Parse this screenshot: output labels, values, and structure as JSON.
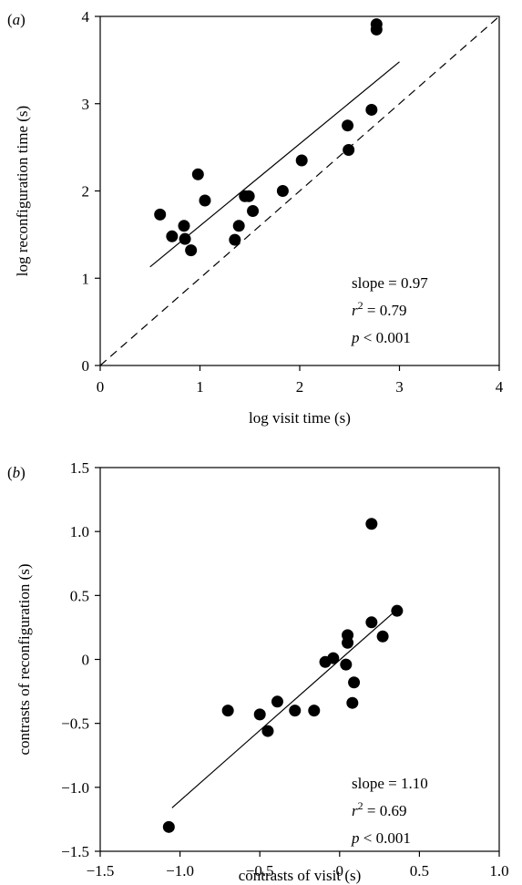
{
  "chart_data": [
    {
      "type": "scatter",
      "panel_label": "a",
      "xlabel": "log visit time (s)",
      "ylabel": "log reconfiguration time (s)",
      "xlim": [
        0,
        4
      ],
      "ylim": [
        0,
        4
      ],
      "xticks": [
        "0",
        "1",
        "2",
        "3",
        "4"
      ],
      "yticks": [
        "0",
        "1",
        "2",
        "3",
        "4"
      ],
      "points": [
        {
          "x": 0.6,
          "y": 1.73
        },
        {
          "x": 0.72,
          "y": 1.48
        },
        {
          "x": 0.84,
          "y": 1.6
        },
        {
          "x": 0.85,
          "y": 1.45
        },
        {
          "x": 0.91,
          "y": 1.32
        },
        {
          "x": 0.98,
          "y": 2.19
        },
        {
          "x": 1.05,
          "y": 1.89
        },
        {
          "x": 1.35,
          "y": 1.44
        },
        {
          "x": 1.39,
          "y": 1.6
        },
        {
          "x": 1.45,
          "y": 1.94
        },
        {
          "x": 1.49,
          "y": 1.94
        },
        {
          "x": 1.53,
          "y": 1.77
        },
        {
          "x": 1.83,
          "y": 2.0
        },
        {
          "x": 2.02,
          "y": 2.35
        },
        {
          "x": 2.48,
          "y": 2.75
        },
        {
          "x": 2.49,
          "y": 2.47
        },
        {
          "x": 2.72,
          "y": 2.93
        },
        {
          "x": 2.77,
          "y": 3.85
        },
        {
          "x": 2.77,
          "y": 3.91
        }
      ],
      "fit_line": {
        "x": [
          0.5,
          3.0
        ],
        "y": [
          1.13,
          3.48
        ]
      },
      "reference_line": {
        "x": [
          0,
          4
        ],
        "y": [
          0,
          4
        ]
      },
      "annotation": {
        "slope": "slope = 0.97",
        "r_label": "r",
        "r_exp": "2",
        "r_value": " = 0.79",
        "p_label": "p",
        "p_value": " <  0.001"
      }
    },
    {
      "type": "scatter",
      "panel_label": "b",
      "xlabel": "contrasts of visit (s)",
      "ylabel": "contrasts of reconfiguration (s)",
      "xlim": [
        -1.5,
        1.0
      ],
      "ylim": [
        -1.5,
        1.5
      ],
      "xticks": [
        "−1.5",
        "−1.0",
        "−0.5",
        "0",
        "0.5",
        "1.0"
      ],
      "yticks": [
        "−1.5",
        "−1.0",
        "−0.5",
        "0",
        "0.5",
        "1.0",
        "1.5"
      ],
      "points": [
        {
          "x": -1.07,
          "y": -1.31
        },
        {
          "x": -0.7,
          "y": -0.4
        },
        {
          "x": -0.5,
          "y": -0.43
        },
        {
          "x": -0.45,
          "y": -0.56
        },
        {
          "x": -0.39,
          "y": -0.33
        },
        {
          "x": -0.28,
          "y": -0.4
        },
        {
          "x": -0.16,
          "y": -0.4
        },
        {
          "x": -0.09,
          "y": -0.02
        },
        {
          "x": -0.04,
          "y": 0.01
        },
        {
          "x": 0.04,
          "y": -0.04
        },
        {
          "x": 0.05,
          "y": 0.19
        },
        {
          "x": 0.05,
          "y": 0.13
        },
        {
          "x": 0.08,
          "y": -0.34
        },
        {
          "x": 0.09,
          "y": -0.18
        },
        {
          "x": 0.2,
          "y": 0.29
        },
        {
          "x": 0.2,
          "y": 1.06
        },
        {
          "x": 0.27,
          "y": 0.18
        },
        {
          "x": 0.36,
          "y": 0.38
        }
      ],
      "fit_line": {
        "x": [
          -1.05,
          0.35
        ],
        "y": [
          -1.16,
          0.38
        ]
      },
      "annotation": {
        "slope": "slope = 1.10",
        "r_label": "r",
        "r_exp": "2",
        "r_value": " = 0.69",
        "p_label": "p",
        "p_value": " <  0.001"
      }
    }
  ]
}
